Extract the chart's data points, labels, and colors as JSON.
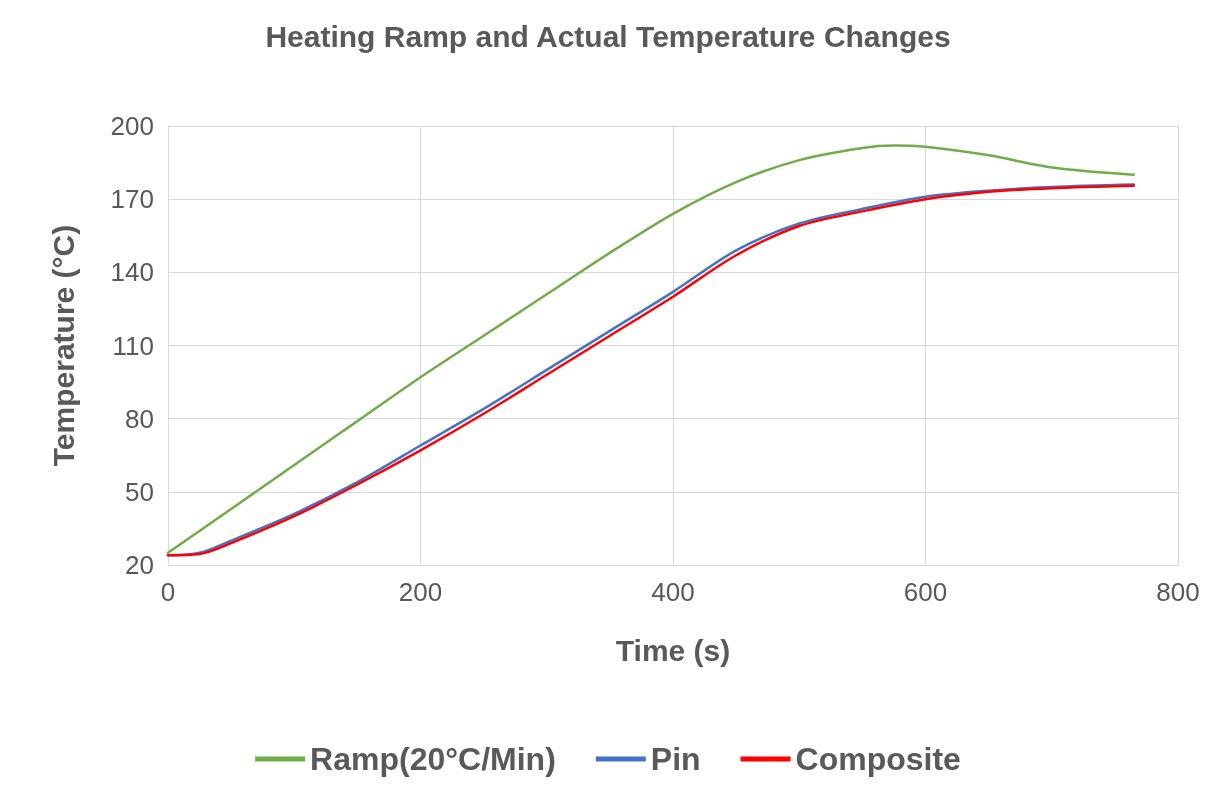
{
  "chart_data": {
    "type": "line",
    "title": "Heating Ramp and Actual Temperature Changes",
    "xlabel": "Time (s)",
    "ylabel": "Temperature (°C)",
    "xlim": [
      0,
      800
    ],
    "xticks": [
      0,
      200,
      400,
      600,
      800
    ],
    "ylim": [
      20,
      200
    ],
    "yticks": [
      20,
      50,
      80,
      110,
      140,
      170,
      200
    ],
    "grid": true,
    "legend": "bottom",
    "marker": "none",
    "line_style": "solid",
    "series": [
      {
        "name": "Ramp(20°C/Min)",
        "color": "#70ad47",
        "x": [
          0,
          50,
          100,
          150,
          200,
          250,
          300,
          350,
          400,
          450,
          500,
          550,
          575,
          600,
          650,
          700,
          765
        ],
        "values": [
          25,
          43,
          61,
          79,
          97,
          114,
          131,
          148,
          164,
          177,
          186,
          191,
          192,
          191.5,
          188,
          183,
          180
        ]
      },
      {
        "name": "Pin",
        "color": "#4472c4",
        "x": [
          0,
          25,
          50,
          100,
          150,
          200,
          250,
          300,
          350,
          400,
          450,
          500,
          550,
          600,
          650,
          700,
          765
        ],
        "values": [
          24,
          25,
          30,
          41,
          54,
          69,
          84,
          100,
          116,
          132,
          149,
          160,
          166,
          171,
          173.5,
          175,
          176
        ]
      },
      {
        "name": "Composite",
        "color": "#ff0000",
        "x": [
          0,
          25,
          50,
          100,
          150,
          200,
          250,
          300,
          350,
          400,
          450,
          500,
          550,
          600,
          650,
          700,
          765
        ],
        "values": [
          24,
          24.5,
          29,
          40,
          53,
          67,
          82,
          98,
          114,
          130,
          147,
          159,
          165,
          170,
          173,
          174.5,
          175.5
        ]
      }
    ]
  }
}
